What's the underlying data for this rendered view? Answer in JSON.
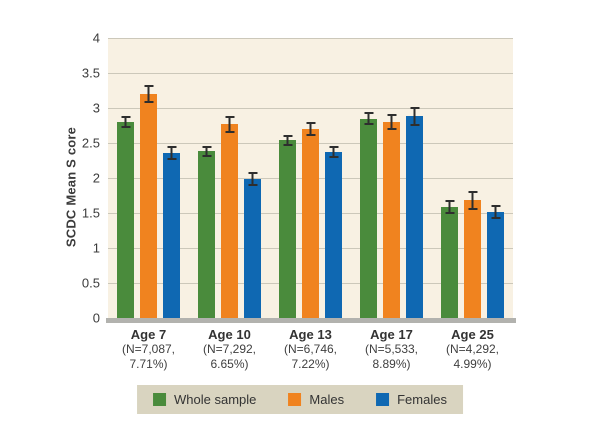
{
  "chart_data": {
    "type": "bar",
    "title": "",
    "xlabel": "",
    "ylabel": "SCDC Mean S core",
    "ylim": [
      0,
      4
    ],
    "ytick_step": 0.5,
    "yticks": [
      "4",
      "3.5",
      "3",
      "2.5",
      "2",
      "1.5",
      "1",
      "0.5",
      "0"
    ],
    "grid": true,
    "legend_position": "bottom",
    "categories": [
      {
        "label": "Age 7",
        "sub_lines": [
          "(N=7,087,",
          "7.71%)"
        ]
      },
      {
        "label": "Age 10",
        "sub_lines": [
          "(N=7,292,",
          "6.65%)"
        ]
      },
      {
        "label": "Age 13",
        "sub_lines": [
          "(N=6,746,",
          "7.22%)"
        ]
      },
      {
        "label": "Age 17",
        "sub_lines": [
          "(N=5,533,",
          "8.89%)"
        ]
      },
      {
        "label": "Age 25",
        "sub_lines": [
          "(N=4,292,",
          "4.99%)"
        ]
      }
    ],
    "series": [
      {
        "name": "Whole sample",
        "color": "#4a8b3c",
        "values": [
          2.8,
          2.38,
          2.54,
          2.85,
          1.59
        ],
        "errors": [
          0.09,
          0.08,
          0.08,
          0.09,
          0.1
        ]
      },
      {
        "name": "Males",
        "color": "#f0831f",
        "values": [
          3.2,
          2.77,
          2.7,
          2.8,
          1.68
        ],
        "errors": [
          0.13,
          0.12,
          0.1,
          0.11,
          0.13
        ]
      },
      {
        "name": "Females",
        "color": "#0f68b2",
        "values": [
          2.36,
          1.98,
          2.37,
          2.88,
          1.51
        ],
        "errors": [
          0.1,
          0.1,
          0.09,
          0.13,
          0.1
        ]
      }
    ]
  },
  "colors": {
    "plot_background": "#f8f1e3",
    "gridline": "#ccc8ba",
    "baseline": "#b2b2ae",
    "legend_background": "#d9d4c0",
    "error_bar": "#2e2e2e",
    "text": "#3b3b3b"
  }
}
